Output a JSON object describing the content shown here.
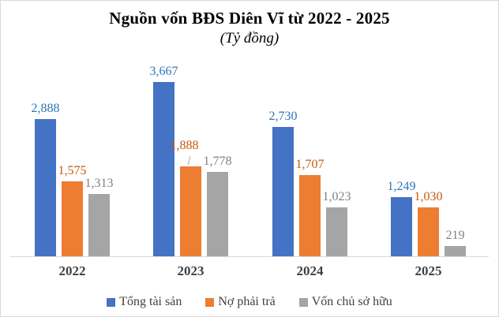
{
  "title": "Nguồn vốn BĐS Diên Vĩ từ 2022 - 2025",
  "subtitle": "(Tỷ đồng)",
  "chart_data": {
    "type": "bar",
    "title": "Nguồn vốn BĐS Diên Vĩ từ 2022 - 2025",
    "subtitle": "(Tỷ đồng)",
    "unit": "Tỷ đồng",
    "categories": [
      "2022",
      "2023",
      "2024",
      "2025"
    ],
    "series": [
      {
        "name": "Tổng tài sản",
        "color": "#4472C4",
        "label_color": "#2E74B5",
        "values": [
          2888,
          3667,
          2730,
          1249
        ]
      },
      {
        "name": "Nợ phải trả",
        "color": "#ED7D31",
        "label_color": "#C55A11",
        "values": [
          1575,
          1888,
          1707,
          1030
        ]
      },
      {
        "name": "Vốn chủ sở hữu",
        "color": "#A5A5A5",
        "label_color": "#808080",
        "values": [
          1313,
          1778,
          1023,
          219
        ]
      }
    ],
    "ylim": [
      0,
      4000
    ],
    "grid": false,
    "y_axis_visible": false,
    "data_labels": true,
    "label_format": "#,##0",
    "legend_position": "bottom",
    "axis_line_color": "#d9d9d9",
    "category_label_color": "#404040",
    "label_adjustments": [
      {
        "series": 1,
        "category": 1,
        "dx": -8,
        "dy": 13,
        "leader": true
      }
    ]
  }
}
